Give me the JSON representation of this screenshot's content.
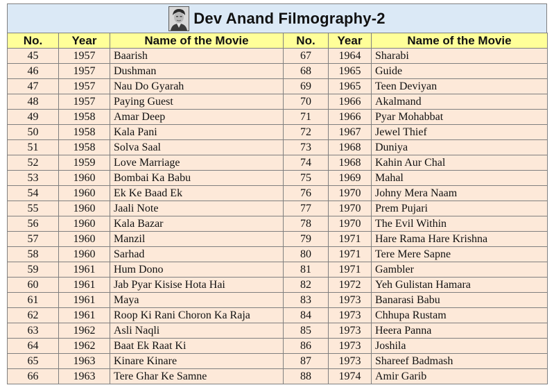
{
  "title": "Dev Anand Filmography-2",
  "columns": [
    "No.",
    "Year",
    "Name of the Movie",
    "No.",
    "Year",
    "Name of the Movie"
  ],
  "left_rows": [
    [
      "45",
      "1957",
      "Baarish"
    ],
    [
      "46",
      "1957",
      "Dushman"
    ],
    [
      "47",
      "1957",
      "Nau Do Gyarah"
    ],
    [
      "48",
      "1957",
      "Paying Guest"
    ],
    [
      "49",
      "1958",
      "Amar Deep"
    ],
    [
      "50",
      "1958",
      "Kala Pani"
    ],
    [
      "51",
      "1958",
      "Solva Saal"
    ],
    [
      "52",
      "1959",
      "Love Marriage"
    ],
    [
      "53",
      "1960",
      "Bombai Ka Babu"
    ],
    [
      "54",
      "1960",
      "Ek Ke Baad Ek"
    ],
    [
      "55",
      "1960",
      "Jaali Note"
    ],
    [
      "56",
      "1960",
      "Kala Bazar"
    ],
    [
      "57",
      "1960",
      "Manzil"
    ],
    [
      "58",
      "1960",
      "Sarhad"
    ],
    [
      "59",
      "1961",
      "Hum Dono"
    ],
    [
      "60",
      "1961",
      "Jab Pyar Kisise Hota Hai"
    ],
    [
      "61",
      "1961",
      "Maya"
    ],
    [
      "62",
      "1961",
      "Roop Ki Rani Choron Ka Raja"
    ],
    [
      "63",
      "1962",
      "Asli Naqli"
    ],
    [
      "64",
      "1962",
      "Baat Ek Raat Ki"
    ],
    [
      "65",
      "1963",
      "Kinare Kinare"
    ],
    [
      "66",
      "1963",
      "Tere Ghar Ke Samne"
    ]
  ],
  "right_rows": [
    [
      "67",
      "1964",
      "Sharabi"
    ],
    [
      "68",
      "1965",
      "Guide"
    ],
    [
      "69",
      "1965",
      "Teen Deviyan"
    ],
    [
      "70",
      "1966",
      "Akalmand"
    ],
    [
      "71",
      "1966",
      "Pyar Mohabbat"
    ],
    [
      "72",
      "1967",
      "Jewel Thief"
    ],
    [
      "73",
      "1968",
      "Duniya"
    ],
    [
      "74",
      "1968",
      "Kahin Aur Chal"
    ],
    [
      "75",
      "1969",
      "Mahal"
    ],
    [
      "76",
      "1970",
      "Johny Mera Naam"
    ],
    [
      "77",
      "1970",
      "Prem Pujari"
    ],
    [
      "78",
      "1970",
      "The Evil Within"
    ],
    [
      "79",
      "1971",
      "Hare Rama Hare Krishna"
    ],
    [
      "80",
      "1971",
      "Tere Mere Sapne"
    ],
    [
      "81",
      "1971",
      "Gambler"
    ],
    [
      "82",
      "1972",
      "Yeh Gulistan Hamara"
    ],
    [
      "83",
      "1973",
      "Banarasi Babu"
    ],
    [
      "84",
      "1973",
      "Chhupa Rustam"
    ],
    [
      "85",
      "1973",
      "Heera Panna"
    ],
    [
      "86",
      "1973",
      "Joshila"
    ],
    [
      "87",
      "1973",
      "Shareef Badmash"
    ],
    [
      "88",
      "1974",
      "Amir Garib"
    ]
  ],
  "colors": {
    "title_background": "#dbe9f6",
    "header_background": "#ffff99",
    "cell_background": "#fde9d9",
    "grid": "#7f7f7f"
  },
  "icons": {
    "title_image": "actor-portrait-icon"
  }
}
